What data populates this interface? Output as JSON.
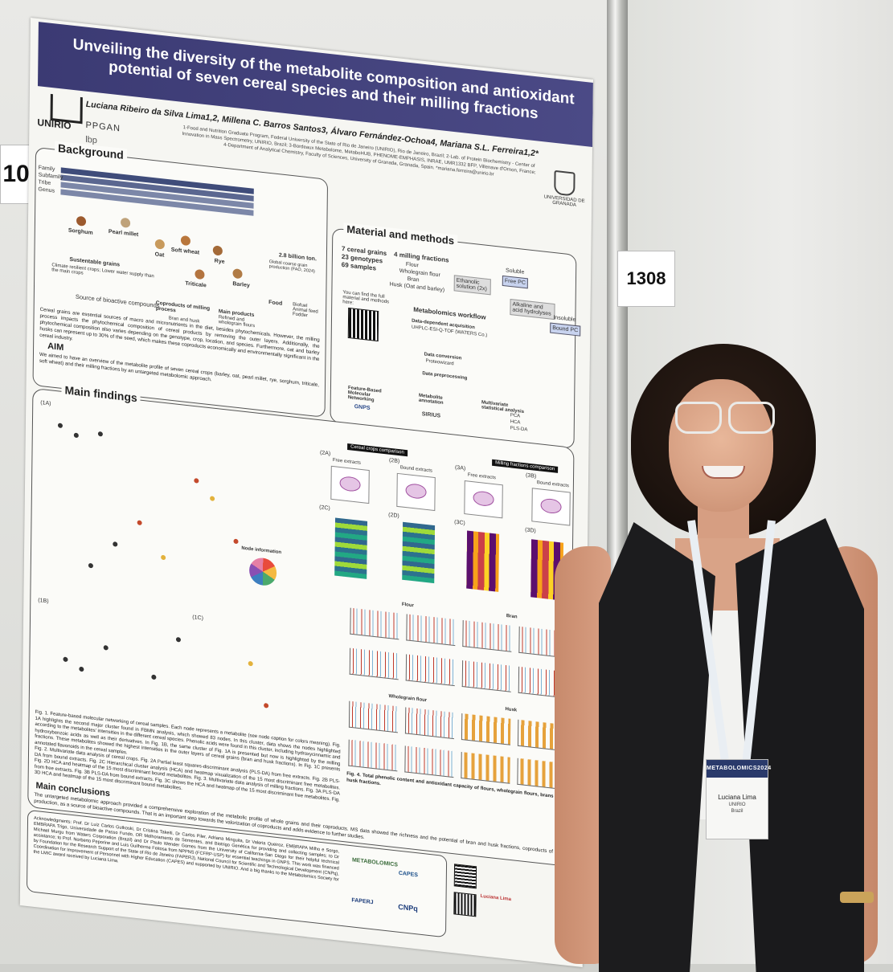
{
  "booth_numbers": {
    "left": "10",
    "right": "1308"
  },
  "poster": {
    "title": "Unveiling the diversity of the metabolite composition and antioxidant potential of seven cereal species and their milling fractions",
    "authors": "Luciana Ribeiro da Silva Lima1,2, Millena C. Barros Santos3, Álvaro Fernández-Ochoa4, Mariana S.L. Ferreira1,2*",
    "affiliations": "1-Food and Nutrition Graduate Program, Federal University of the State of Rio de Janeiro (UNIRIO), Rio de Janeiro, Brazil; 2-Lab. of Protein Biochemistry - Center of Innovation in Mass Spectrometry, UNIRIO, Brazil; 3-Bordeaux Metabolome, MetaboHUB, PHENOME-EMPHASIS, INRAE, UMR1332 BFP, Villenave d'Ornon, France; 4-Department of Analytical Chemistry, Faculty of Sciences, University of Granada, Granada, Spain. *mariana.ferreira@unirio.br",
    "logos": {
      "unirio": "UNIRIO",
      "ppgan": "PPGAN",
      "lbp": "lbp",
      "ugr": "UNIVERSIDAD DE GRANADA"
    },
    "background": {
      "heading": "Background",
      "taxonomy_labels": [
        "Family",
        "Subfamily",
        "Tribe",
        "Genus"
      ],
      "cereals": [
        "Sorghum",
        "Pearl millet",
        "Oat",
        "Soft wheat",
        "Rye",
        "Barley",
        "Triticale"
      ],
      "notes": [
        "Sustentable grains",
        "Climate resilient crops; Lower water supply than the main crops",
        "Source of bioactive compounds",
        "Coproducts of milling process",
        "Bran and husk",
        "Main products",
        "Refined and wholegrain flours",
        "2.8 billion ton.",
        "Global coarse grain production (FAO, 2024)",
        "Food",
        "Biofuel Animal feed Fodder"
      ],
      "paragraph": "Cereal grains are essential sources of macro and micronutrients in the diet, besides phytochemicals. However, the milling process impacts the phytochemical composition of cereal products by removing the outer layers. Additionally, the phytochemical composition also varies depending on the genotype, crop, location, and species. Furthermore, oat and barley husks can represent up to 30% of the seed, which makes these coproducts economically and environmentally significant in the cereal industry.",
      "aim_heading": "AIM",
      "aim_text": "We aimed to have an overview of the metabolite profile of seven cereal crops (barley, oat, pearl millet, rye, sorghum, triticale, soft wheat) and their milling fractions by an untargeted metabolomic approach."
    },
    "methods": {
      "heading": "Material and methods",
      "samples": [
        "7 cereal grains",
        "23 genotypes",
        "69 samples"
      ],
      "fractions_heading": "4 milling fractions",
      "fractions": [
        "Flour",
        "Wholegrain flour",
        "Bran",
        "Husk (Oat and barley)"
      ],
      "extraction": [
        "Ethanolic solution (2x)",
        "Soluble",
        "Free PC",
        "Alkaline and acid hydrolyses",
        "Insoluble",
        "Bound PC"
      ],
      "qr_note": "You can find the full material and methods here:",
      "workflow_heading": "Metabolomics workflow",
      "workflow_steps": [
        "Data-dependent acquisition",
        "UHPLC-ESI-Q-TOF (WATERS Co.)",
        "Data conversion",
        "Proteowizard",
        "Data preprocessing",
        "Feature-Based Molecular Networking",
        "Metabolite annotation",
        "Multivariate statistical analysis"
      ],
      "tools": [
        "GNPS",
        "SIRIUS",
        "PCA",
        "HCA",
        "PLS-DA"
      ]
    },
    "findings": {
      "heading": "Main findings",
      "panel_labels": [
        "(1A)",
        "(1B)",
        "(1C)",
        "(2A)",
        "(2B)",
        "(2C)",
        "(2D)",
        "(3A)",
        "(3B)",
        "(3C)",
        "(3D)"
      ],
      "cereal_comparison": "Cereal crops comparison",
      "milling_comparison": "Milling fractions comparison",
      "free_extracts": "Free extracts",
      "bound_extracts": "Bound extracts",
      "fig1_caption": "Fig. 1. Feature-based molecular networking of cereal samples. Each node represents a metabolite (see node caption for colors meaning). Fig. 1A highlights the second major cluster found in FBMN analysis, which showed 83 nodes. In this cluster, data shows the nodes highlighted according to the metabolites' intensities in the different cereal species. Phenolic acids were found in this cluster, including hydroxycinnamic and hydroxybenzoic acids as well as their derivatives. In Fig. 1B, the same cluster of Fig. 1A is presented but now is highlighted by the milling fractions. These metabolites showed the highest intensities in the outer layers of cereal grains (bran and husk fractions). In Fig. 1C presents annotated flavonoids in the cereal samples.",
      "fig2_caption": "Fig. 2. Multivariate data analysis of cereal crops. Fig. 2A Partial least squares-discriminant analysis (PLS-DA) from free extracts. Fig. 2B PLS-DA from bound extracts. Fig. 2C Hierarchical cluster analysis (HCA) and heatmap visualization of the 15 most discriminant free metabolites. Fig. 2D HCA and heatmap of the 15 most discriminant bound metabolites. Fig. 3. Multivariate data analysis of milling fractions. Fig. 3A PLS-DA from free extracts. Fig. 3B PLS-DA from bound extracts. Fig. 3C shows the HCA and heatmap of the 15 most discriminant free metabolites. Fig. 3D HCA and heatmap of the 15 most discriminant bound metabolites.",
      "fig4_caption": "Fig. 4. Total phenolic content and antioxidant capacity of flours, wholegrain flours, brans and husk fractions.",
      "fig4_sections": [
        "Flour",
        "Bran",
        "Wholegrain flour",
        "Husk"
      ],
      "node_info": "Node information"
    },
    "conclusions": {
      "heading": "Main conclusions",
      "text": "The untargeted metabolomic approach provided a comprehensive exploration of the metabolic profile of whole grains and their coproducts. MS data showed the richness and the potential of bran and husk fractions, coproducts of flour production, as a source of bioactive compounds. That is an important step towards the valorization of coproducts and adds evidence to further studies."
    },
    "acknowledgments": {
      "text": "Acknowledgments: Prof. Dr Luiz Carlos Gutkoski, Dr Cristina Takeiti, Dr Carlos Piler, Adriana Minguita, Dr Valeria Queiroz, EMBRAPA Milho e Sorgo, EMBRAPA Trigo, Universidade de Passo Fundo, OR Melhoramento de Sementes, and Biotrigo Genética for providing and collecting samples; to Dr Michael Murgu from Waters Corporation (Brazil) and Dr Paulo Wender Gomes from the University of California-San Diego for their helpful technical assistance; to Prof. Norberto Peporine and Luis Guilherme Feitosa from NPPNS (FCFRP-USP) for essential teachings in GNPS. This work was financed by Foundation for the Research Support of the State of Rio de Janeiro (FAPERJ), National Council for Scientific and Technological Development (CNPq), Coordination for Improvement of Personnel with Higher Education (CAPES) and supported by UNIRIO. And a big thanks to the Metabolomics Society for the LMIC award received by Luciana Lima.",
      "logos": [
        "METABOLOMICS",
        "CAPES",
        "FAPERJ",
        "CNPq"
      ],
      "contact_name": "Luciana Lima"
    }
  },
  "badge": {
    "event": "METABOLOMICS2024",
    "name": "Luciana Lima",
    "org": "UNIRIO",
    "country": "Brazil"
  }
}
